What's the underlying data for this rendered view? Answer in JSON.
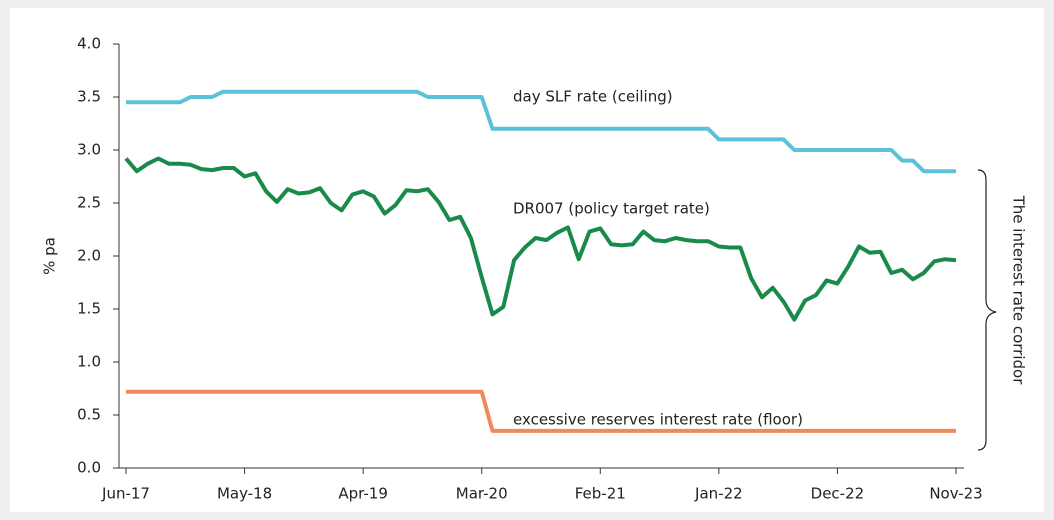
{
  "chart_data": {
    "type": "line",
    "y_label": "% pa",
    "categories": [
      "Jun-17",
      null,
      null,
      null,
      null,
      null,
      null,
      null,
      null,
      null,
      null,
      "May-18",
      null,
      null,
      null,
      null,
      null,
      null,
      null,
      null,
      null,
      null,
      "Apr-19",
      null,
      null,
      null,
      null,
      null,
      null,
      null,
      null,
      null,
      null,
      "Mar-20",
      null,
      null,
      null,
      null,
      null,
      null,
      null,
      null,
      null,
      null,
      "Feb-21",
      null,
      null,
      null,
      null,
      null,
      null,
      null,
      null,
      null,
      null,
      "Jan-22",
      null,
      null,
      null,
      null,
      null,
      null,
      null,
      null,
      null,
      null,
      "Dec-22",
      null,
      null,
      null,
      null,
      null,
      null,
      null,
      null,
      null,
      null,
      "Nov-23"
    ],
    "ylim": [
      0,
      4
    ],
    "yticks": [
      {
        "value": 0,
        "label": "0.0"
      },
      0.5,
      {
        "value": 1,
        "label": "1.0"
      },
      1.5,
      {
        "value": 2,
        "label": "2.0"
      },
      2.5,
      {
        "value": 3,
        "label": "3.0"
      },
      3.5,
      {
        "value": 4,
        "label": "4.0"
      }
    ],
    "series": [
      {
        "name": "day SLF rate (ceiling)",
        "color": "#5bc2d9",
        "values": [
          3.45,
          3.45,
          3.45,
          3.45,
          3.45,
          3.45,
          3.5,
          3.5,
          3.5,
          3.55,
          3.55,
          3.55,
          3.55,
          3.55,
          3.55,
          3.55,
          3.55,
          3.55,
          3.55,
          3.55,
          3.55,
          3.55,
          3.55,
          3.55,
          3.55,
          3.55,
          3.55,
          3.55,
          3.5,
          3.5,
          3.5,
          3.5,
          3.5,
          3.5,
          3.2,
          3.2,
          3.2,
          3.2,
          3.2,
          3.2,
          3.2,
          3.2,
          3.2,
          3.2,
          3.2,
          3.2,
          3.2,
          3.2,
          3.2,
          3.2,
          3.2,
          3.2,
          3.2,
          3.2,
          3.2,
          3.1,
          3.1,
          3.1,
          3.1,
          3.1,
          3.1,
          3.1,
          3.0,
          3.0,
          3.0,
          3.0,
          3.0,
          3.0,
          3.0,
          3.0,
          3.0,
          3.0,
          2.9,
          2.9,
          2.8,
          2.8,
          2.8,
          2.8
        ]
      },
      {
        "name": "DR007 (policy target rate)",
        "color": "#1a8a4a",
        "values": [
          2.92,
          2.8,
          2.87,
          2.92,
          2.87,
          2.87,
          2.86,
          2.82,
          2.81,
          2.83,
          2.83,
          2.75,
          2.78,
          2.61,
          2.51,
          2.63,
          2.59,
          2.6,
          2.64,
          2.5,
          2.43,
          2.58,
          2.61,
          2.56,
          2.4,
          2.48,
          2.62,
          2.61,
          2.63,
          2.51,
          2.34,
          2.37,
          2.17,
          1.8,
          1.45,
          1.52,
          1.96,
          2.08,
          2.17,
          2.15,
          2.22,
          2.27,
          1.97,
          2.23,
          2.26,
          2.11,
          2.1,
          2.11,
          2.23,
          2.15,
          2.14,
          2.17,
          2.15,
          2.14,
          2.14,
          2.09,
          2.08,
          2.08,
          1.79,
          1.61,
          1.7,
          1.57,
          1.4,
          1.58,
          1.63,
          1.77,
          1.74,
          1.9,
          2.09,
          2.03,
          2.04,
          1.84,
          1.87,
          1.78,
          1.84,
          1.95,
          1.97,
          1.96
        ]
      },
      {
        "name": "excessive reserves interest rate (floor)",
        "color": "#f08a5d",
        "values": [
          0.72,
          0.72,
          0.72,
          0.72,
          0.72,
          0.72,
          0.72,
          0.72,
          0.72,
          0.72,
          0.72,
          0.72,
          0.72,
          0.72,
          0.72,
          0.72,
          0.72,
          0.72,
          0.72,
          0.72,
          0.72,
          0.72,
          0.72,
          0.72,
          0.72,
          0.72,
          0.72,
          0.72,
          0.72,
          0.72,
          0.72,
          0.72,
          0.72,
          0.72,
          0.35,
          0.35,
          0.35,
          0.35,
          0.35,
          0.35,
          0.35,
          0.35,
          0.35,
          0.35,
          0.35,
          0.35,
          0.35,
          0.35,
          0.35,
          0.35,
          0.35,
          0.35,
          0.35,
          0.35,
          0.35,
          0.35,
          0.35,
          0.35,
          0.35,
          0.35,
          0.35,
          0.35,
          0.35,
          0.35,
          0.35,
          0.35,
          0.35,
          0.35,
          0.35,
          0.35,
          0.35,
          0.35,
          0.35,
          0.35,
          0.35,
          0.35,
          0.35,
          0.35
        ]
      }
    ],
    "annotation": "The interest rate corridor"
  }
}
